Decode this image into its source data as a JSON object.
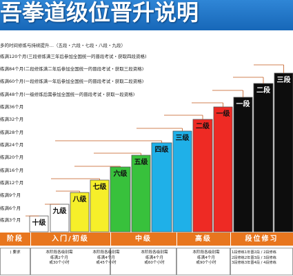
{
  "header": {
    "title": "吾拳道级位晋升说明"
  },
  "intro": "多的时间修炼与持续提升…（五段・六段・七段・八段・九段）",
  "requirements": [
    "练满120个月(三段修炼满三年后参加全国统一的晋段考试・获取四段资格)",
    "练满84个月(二段修炼满二年后参加全国统一的晋段考试・获取三段资格)",
    "练满60个月(一段修炼满一年后参加全国统一的晋段考试・获取二段资格)",
    "练满48个月(一级修炼后需参加全国统一的晋段考试・获取一段资格)",
    "练满36个月",
    "练满32个月",
    "练满28个月",
    "练满24个月",
    "练满20个月",
    "练满16个月",
    "练满12个月",
    "练满9个月",
    "练满6个月",
    "练满3个月"
  ],
  "chart_data": {
    "type": "bar",
    "categories": [
      "十级",
      "九级",
      "八级",
      "七级",
      "六级",
      "五级",
      "四级",
      "三级",
      "二级",
      "一级",
      "一段",
      "二段",
      "三段"
    ],
    "series": [
      {
        "values": [
          3,
          6,
          9,
          12,
          16,
          20,
          24,
          28,
          32,
          36,
          48,
          60,
          84
        ]
      }
    ],
    "colors": [
      "#ffffff",
      "#ffffff",
      "#f6ef2a",
      "#f6ef2a",
      "#38c13c",
      "#38c13c",
      "#1fb0e8",
      "#1fb0e8",
      "#ee2a24",
      "#ee2a24",
      "#0d0d0d",
      "#0d0d0d",
      "#0d0d0d"
    ],
    "label_colors": [
      "#111111",
      "#111111",
      "#111111",
      "#111111",
      "#111111",
      "#111111",
      "#111111",
      "#111111",
      "#111111",
      "#111111",
      "#ffffff",
      "#ffffff",
      "#ffffff"
    ],
    "ylim": [
      0,
      84
    ],
    "unit": "个月"
  },
  "stages": [
    {
      "label": "阶段"
    },
    {
      "label": "入门/初级"
    },
    {
      "label": "中级"
    },
    {
      "label": "高级"
    },
    {
      "label": "段位修习"
    }
  ],
  "notes": [
    {
      "text": ") 要求"
    },
    {
      "text": "本阶段各级别需\n练满2个月\n或30个小时"
    },
    {
      "text": "本阶段各级别需\n练满4个月\n或45个小时"
    },
    {
      "text": "本阶段各级别需\n练满4个月\n或60个小时"
    },
    {
      "text": "本阶段各级别需\n练满4个月\n或90个小时"
    },
    {
      "text": "1段修练1年晋2段 / 2段修练\n2段修练2年晋3段 / 3段修练\n3段修练3年晋4段 / 4段修练"
    }
  ]
}
